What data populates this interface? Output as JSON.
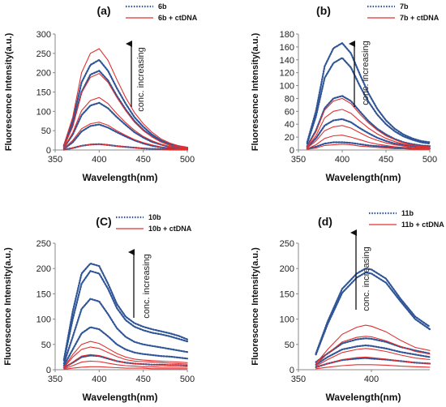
{
  "colors": {
    "free": "#2f5597",
    "dna": "#e03030",
    "axis": "#888888",
    "text": "#111111"
  },
  "chart_data": [
    {
      "type": "line",
      "panel": "(a)",
      "xlabel": "Wavelength(nm)",
      "ylabel": "Fluorescence Intensity(a.u.)",
      "xlim": [
        350,
        500
      ],
      "ylim": [
        0,
        300
      ],
      "xticks": [
        350,
        400,
        450,
        500
      ],
      "yticks": [
        0,
        50,
        100,
        150,
        200,
        250,
        300
      ],
      "legend": [
        "6b",
        "6b + ctDNA"
      ],
      "annotation": "conc. increasing",
      "x": [
        360,
        370,
        380,
        390,
        400,
        410,
        420,
        430,
        440,
        450,
        460,
        470,
        480,
        490,
        500
      ],
      "series": [
        {
          "group": "free",
          "values": [
            12,
            75,
            175,
            220,
            233,
            205,
            160,
            120,
            85,
            60,
            40,
            25,
            15,
            10,
            6
          ]
        },
        {
          "group": "free",
          "values": [
            10,
            65,
            150,
            195,
            205,
            180,
            140,
            105,
            75,
            52,
            35,
            22,
            13,
            8,
            5
          ]
        },
        {
          "group": "free",
          "values": [
            6,
            40,
            90,
            115,
            122,
            108,
            85,
            65,
            46,
            32,
            21,
            14,
            8,
            5,
            3
          ]
        },
        {
          "group": "free",
          "values": [
            3,
            20,
            48,
            62,
            66,
            58,
            46,
            35,
            25,
            17,
            11,
            7,
            4,
            3,
            2
          ]
        },
        {
          "group": "free",
          "values": [
            1,
            5,
            11,
            14,
            15,
            13,
            10,
            8,
            6,
            4,
            3,
            2,
            1,
            1,
            1
          ]
        },
        {
          "group": "dna",
          "values": [
            14,
            85,
            200,
            250,
            262,
            232,
            182,
            136,
            97,
            68,
            46,
            29,
            18,
            11,
            7
          ]
        },
        {
          "group": "dna",
          "values": [
            9,
            60,
            148,
            188,
            198,
            175,
            136,
            102,
            72,
            50,
            34,
            21,
            13,
            8,
            5
          ]
        },
        {
          "group": "dna",
          "values": [
            6,
            45,
            102,
            128,
            136,
            120,
            94,
            71,
            51,
            35,
            24,
            15,
            9,
            6,
            4
          ]
        },
        {
          "group": "dna",
          "values": [
            4,
            25,
            55,
            68,
            72,
            64,
            50,
            38,
            27,
            19,
            13,
            8,
            5,
            3,
            2
          ]
        },
        {
          "group": "dna",
          "values": [
            1,
            5,
            11,
            14,
            15,
            13,
            10,
            8,
            6,
            4,
            3,
            2,
            1,
            1,
            1
          ]
        }
      ]
    },
    {
      "type": "line",
      "panel": "(b)",
      "xlabel": "Wavelength(nm)",
      "ylabel": "Fluorescence Intensity(a.u.)",
      "xlim": [
        350,
        500
      ],
      "ylim": [
        0,
        180
      ],
      "xticks": [
        350,
        400,
        450,
        500
      ],
      "yticks": [
        0,
        20,
        40,
        60,
        80,
        100,
        120,
        140,
        160,
        180
      ],
      "legend": [
        "7b",
        "7b + ctDNA"
      ],
      "annotation": "conc. increasing",
      "x": [
        360,
        370,
        380,
        390,
        400,
        410,
        420,
        430,
        440,
        450,
        460,
        470,
        480,
        490,
        500
      ],
      "series": [
        {
          "group": "free",
          "values": [
            12,
            60,
            130,
            158,
            166,
            150,
            118,
            88,
            64,
            46,
            33,
            24,
            18,
            14,
            12
          ]
        },
        {
          "group": "free",
          "values": [
            10,
            52,
            112,
            135,
            143,
            128,
            100,
            75,
            55,
            40,
            29,
            21,
            16,
            12,
            10
          ]
        },
        {
          "group": "free",
          "values": [
            6,
            30,
            65,
            80,
            84,
            76,
            60,
            45,
            33,
            24,
            17,
            12,
            9,
            7,
            6
          ]
        },
        {
          "group": "free",
          "values": [
            4,
            18,
            38,
            46,
            48,
            43,
            34,
            26,
            19,
            14,
            10,
            8,
            6,
            5,
            4
          ]
        },
        {
          "group": "free",
          "values": [
            2,
            5,
            10,
            12,
            12,
            11,
            9,
            7,
            6,
            5,
            4,
            3,
            3,
            2,
            2
          ]
        },
        {
          "group": "dna",
          "values": [
            5,
            28,
            62,
            76,
            80,
            72,
            56,
            42,
            31,
            22,
            16,
            11,
            8,
            6,
            5
          ]
        },
        {
          "group": "dna",
          "values": [
            4,
            22,
            50,
            60,
            63,
            57,
            45,
            34,
            25,
            18,
            13,
            9,
            7,
            5,
            4
          ]
        },
        {
          "group": "dna",
          "values": [
            3,
            14,
            30,
            36,
            38,
            34,
            27,
            20,
            15,
            11,
            8,
            6,
            4,
            3,
            3
          ]
        },
        {
          "group": "dna",
          "values": [
            2,
            8,
            18,
            22,
            23,
            20,
            16,
            12,
            9,
            7,
            5,
            4,
            3,
            2,
            2
          ]
        },
        {
          "group": "dna",
          "values": [
            1,
            3,
            7,
            8,
            9,
            8,
            6,
            5,
            4,
            3,
            2,
            2,
            1,
            1,
            1
          ]
        }
      ]
    },
    {
      "type": "line",
      "panel": "(C)",
      "xlabel": "Wavelength(nm)",
      "ylabel": "Fluorescence Intensity(a.u.)",
      "xlim": [
        350,
        500
      ],
      "ylim": [
        0,
        250
      ],
      "xticks": [
        350,
        400,
        450,
        500
      ],
      "yticks": [
        0,
        50,
        100,
        150,
        200,
        250
      ],
      "legend": [
        "10b",
        "10b + ctDNA"
      ],
      "annotation": "conc. increasing",
      "x": [
        360,
        370,
        380,
        390,
        400,
        410,
        420,
        430,
        440,
        450,
        460,
        470,
        480,
        490,
        500
      ],
      "series": [
        {
          "group": "free",
          "values": [
            20,
            115,
            190,
            210,
            205,
            170,
            130,
            105,
            92,
            85,
            80,
            76,
            72,
            67,
            60
          ]
        },
        {
          "group": "free",
          "values": [
            18,
            100,
            170,
            195,
            190,
            160,
            122,
            98,
            85,
            78,
            73,
            70,
            66,
            61,
            56
          ]
        },
        {
          "group": "free",
          "values": [
            12,
            65,
            120,
            140,
            135,
            110,
            82,
            65,
            55,
            50,
            47,
            44,
            41,
            38,
            35
          ]
        },
        {
          "group": "free",
          "values": [
            8,
            40,
            72,
            84,
            80,
            66,
            50,
            40,
            34,
            31,
            29,
            27,
            26,
            24,
            22
          ]
        },
        {
          "group": "free",
          "values": [
            4,
            14,
            25,
            28,
            27,
            22,
            17,
            14,
            12,
            11,
            10,
            10,
            9,
            9,
            8
          ]
        },
        {
          "group": "dna",
          "values": [
            5,
            30,
            50,
            56,
            52,
            42,
            32,
            25,
            21,
            19,
            18,
            17,
            16,
            15,
            14
          ]
        },
        {
          "group": "dna",
          "values": [
            4,
            25,
            40,
            45,
            42,
            34,
            26,
            20,
            17,
            16,
            15,
            14,
            13,
            12,
            11
          ]
        },
        {
          "group": "dna",
          "values": [
            3,
            15,
            27,
            30,
            28,
            23,
            17,
            14,
            12,
            11,
            10,
            9,
            9,
            8,
            8
          ]
        },
        {
          "group": "dna",
          "values": [
            2,
            8,
            15,
            17,
            16,
            13,
            10,
            8,
            7,
            6,
            6,
            5,
            5,
            5,
            5
          ]
        },
        {
          "group": "dna",
          "values": [
            1,
            3,
            5,
            6,
            6,
            5,
            4,
            3,
            3,
            3,
            2,
            2,
            2,
            2,
            2
          ]
        }
      ]
    },
    {
      "type": "line",
      "panel": "(d)",
      "xlabel": "Wavelength(nm)",
      "ylabel": "Fluorescence Intensity(a.u.)",
      "xlim": [
        350,
        440
      ],
      "ylim": [
        0,
        250
      ],
      "xticks": [
        350,
        400
      ],
      "yticks": [
        0,
        50,
        100,
        150,
        200,
        250
      ],
      "legend": [
        "11b",
        "11b + ctDNA"
      ],
      "annotation": "conc. increasing",
      "x": [
        362,
        370,
        380,
        390,
        396,
        400,
        410,
        420,
        430,
        440
      ],
      "series": [
        {
          "group": "free",
          "values": [
            32,
            95,
            160,
            190,
            200,
            198,
            180,
            140,
            105,
            85
          ]
        },
        {
          "group": "free",
          "values": [
            30,
            90,
            152,
            182,
            192,
            190,
            172,
            135,
            100,
            80
          ]
        },
        {
          "group": "free",
          "values": [
            15,
            32,
            52,
            60,
            62,
            61,
            55,
            45,
            38,
            32
          ]
        },
        {
          "group": "free",
          "values": [
            10,
            25,
            40,
            46,
            48,
            47,
            42,
            35,
            30,
            25
          ]
        },
        {
          "group": "free",
          "values": [
            5,
            12,
            19,
            22,
            23,
            22,
            20,
            17,
            14,
            12
          ]
        },
        {
          "group": "dna",
          "values": [
            12,
            40,
            70,
            84,
            88,
            86,
            75,
            58,
            44,
            38
          ]
        },
        {
          "group": "dna",
          "values": [
            10,
            32,
            55,
            64,
            66,
            65,
            57,
            46,
            36,
            31
          ]
        },
        {
          "group": "dna",
          "values": [
            7,
            20,
            34,
            40,
            42,
            41,
            36,
            29,
            23,
            20
          ]
        },
        {
          "group": "dna",
          "values": [
            4,
            12,
            20,
            24,
            25,
            24,
            21,
            17,
            14,
            12
          ]
        },
        {
          "group": "dna",
          "values": [
            2,
            5,
            8,
            10,
            10,
            10,
            9,
            7,
            6,
            5
          ]
        }
      ]
    }
  ]
}
